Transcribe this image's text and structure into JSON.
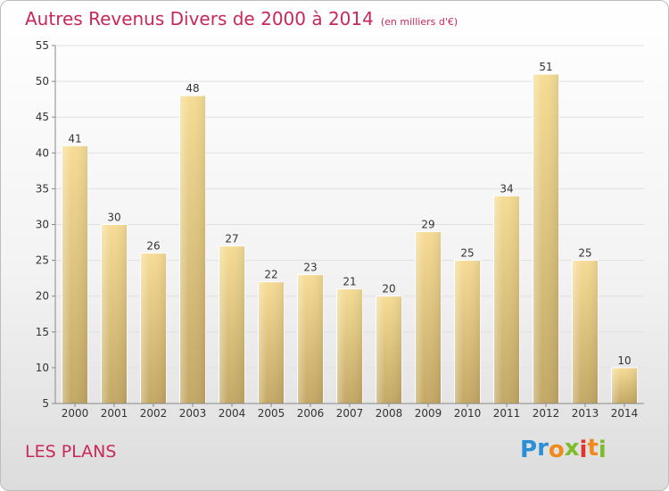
{
  "header": {
    "title": "Autres Revenus Divers de 2000 à 2014",
    "unit": "(en milliers d'€)"
  },
  "footer": {
    "town": "LES PLANS",
    "brand": "Proxiti",
    "brand_letters": [
      "P",
      "r",
      "o",
      "x",
      "i",
      "t",
      "i"
    ],
    "brand_colors": [
      "#2a8fd6",
      "#2a8fd6",
      "#f08a1c",
      "#7dbd2a",
      "#e3322b",
      "#f08a1c",
      "#7dbd2a"
    ]
  },
  "colors": {
    "title": "#c8285a",
    "bar_light": "#f6dc95",
    "bar_dark": "#c3a865",
    "axis": "#888888",
    "grid": "#e0e0e0",
    "text": "#333333"
  },
  "chart_data": {
    "type": "bar",
    "title": "Autres Revenus Divers de 2000 à 2014",
    "subtitle": "(en milliers d'€)",
    "xlabel": "",
    "ylabel": "",
    "ylim": [
      5,
      55
    ],
    "yticks": [
      5,
      10,
      15,
      20,
      25,
      30,
      35,
      40,
      45,
      50,
      55
    ],
    "grid": true,
    "categories": [
      "2000",
      "2001",
      "2002",
      "2003",
      "2004",
      "2005",
      "2006",
      "2007",
      "2008",
      "2009",
      "2010",
      "2011",
      "2012",
      "2013",
      "2014"
    ],
    "values": [
      41,
      30,
      26,
      48,
      27,
      22,
      23,
      21,
      20,
      29,
      25,
      34,
      51,
      25,
      10
    ]
  }
}
